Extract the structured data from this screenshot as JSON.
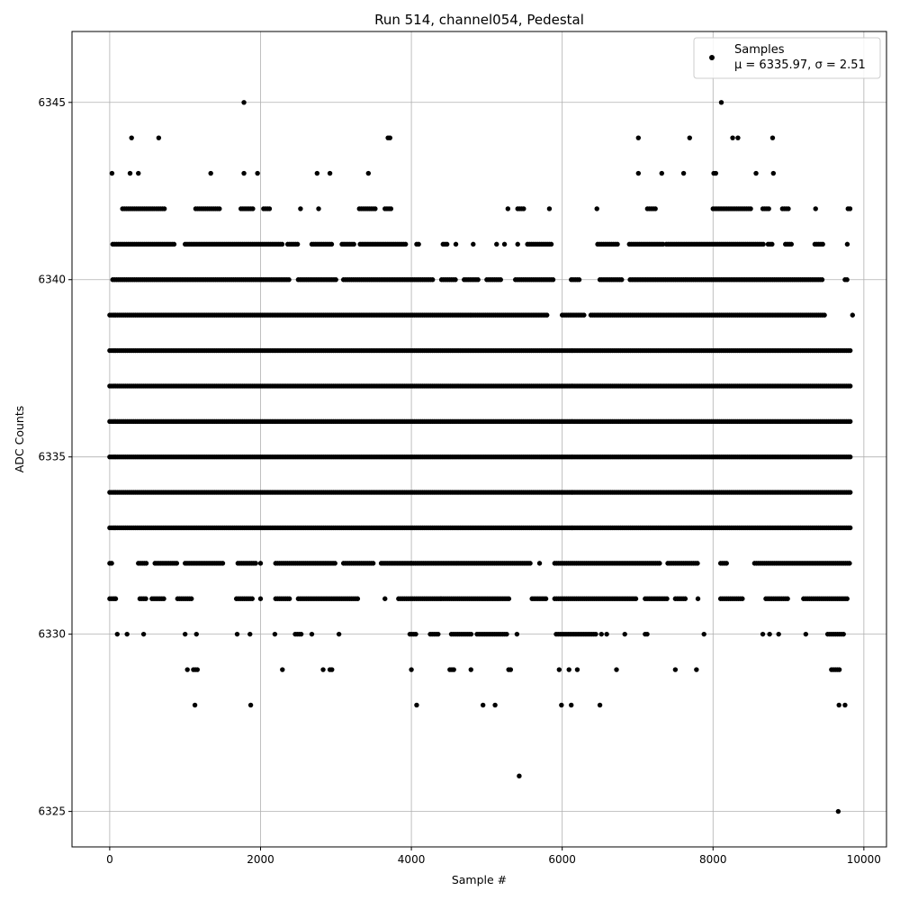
{
  "chart_data": {
    "type": "scatter",
    "title": "Run 514, channel054, Pedestal",
    "xlabel": "Sample #",
    "ylabel": "ADC Counts",
    "xlim": [
      -500,
      10300
    ],
    "ylim": [
      6324,
      6347
    ],
    "xticks": [
      0,
      2000,
      4000,
      6000,
      8000,
      10000
    ],
    "yticks": [
      6325,
      6330,
      6335,
      6340,
      6345
    ],
    "grid": true,
    "legend": {
      "placement": "top-right",
      "label": "Samples",
      "stats": "μ = 6335.97, σ = 2.51"
    },
    "series": [
      {
        "name": "Samples",
        "color": "#000000",
        "band_ranges": [
          {
            "y": 6345,
            "segments": [
              [
                1780,
                1780
              ],
              [
                8110,
                8110
              ]
            ]
          },
          {
            "y": 6344,
            "segments": [
              [
                290,
                290
              ],
              [
                650,
                650
              ],
              [
                3690,
                3720
              ],
              [
                7010,
                7010
              ],
              [
                7690,
                7690
              ],
              [
                8260,
                8260
              ],
              [
                8330,
                8330
              ],
              [
                8780,
                8800
              ]
            ]
          },
          {
            "y": 6343,
            "segments": [
              [
                30,
                30
              ],
              [
                270,
                270
              ],
              [
                380,
                380
              ],
              [
                1340,
                1340
              ],
              [
                1780,
                1780
              ],
              [
                1960,
                1960
              ],
              [
                2750,
                2750
              ],
              [
                2920,
                2920
              ],
              [
                3430,
                3430
              ],
              [
                7010,
                7010
              ],
              [
                7320,
                7320
              ],
              [
                7610,
                7610
              ],
              [
                8010,
                8050
              ],
              [
                8570,
                8570
              ],
              [
                8800,
                8800
              ]
            ]
          },
          {
            "y": 6342,
            "segments": [
              [
                170,
                600
              ],
              [
                620,
                740
              ],
              [
                1140,
                1460
              ],
              [
                1740,
                1920
              ],
              [
                2040,
                2130
              ],
              [
                2530,
                2530
              ],
              [
                2770,
                2770
              ],
              [
                3310,
                3540
              ],
              [
                3650,
                3750
              ],
              [
                5280,
                5280
              ],
              [
                5410,
                5500
              ],
              [
                5830,
                5830
              ],
              [
                6460,
                6460
              ],
              [
                7130,
                7240
              ],
              [
                8000,
                8500
              ],
              [
                8660,
                8750
              ],
              [
                8920,
                9020
              ],
              [
                9360,
                9360
              ],
              [
                9790,
                9820
              ]
            ]
          },
          {
            "y": 6341,
            "segments": [
              [
                40,
                880
              ],
              [
                1000,
                2300
              ],
              [
                2360,
                2500
              ],
              [
                2680,
                2960
              ],
              [
                3080,
                3240
              ],
              [
                3320,
                3940
              ],
              [
                4070,
                4100
              ],
              [
                4420,
                4490
              ],
              [
                4590,
                4590
              ],
              [
                4820,
                4820
              ],
              [
                5130,
                5130
              ],
              [
                5230,
                5240
              ],
              [
                5410,
                5410
              ],
              [
                5540,
                5880
              ],
              [
                6470,
                6750
              ],
              [
                6890,
                7350
              ],
              [
                7380,
                8680
              ],
              [
                8730,
                8800
              ],
              [
                8960,
                9050
              ],
              [
                9350,
                9470
              ],
              [
                9780,
                9780
              ]
            ]
          },
          {
            "y": 6340,
            "segments": [
              [
                40,
                2400
              ],
              [
                2500,
                3000
              ],
              [
                3100,
                4300
              ],
              [
                4400,
                4600
              ],
              [
                4700,
                4900
              ],
              [
                5000,
                5200
              ],
              [
                5380,
                5880
              ],
              [
                6120,
                6240
              ],
              [
                6500,
                6800
              ],
              [
                6900,
                9450
              ],
              [
                9750,
                9800
              ]
            ]
          },
          {
            "y": 6339,
            "segments": [
              [
                0,
                4800
              ],
              [
                4800,
                5800
              ],
              [
                6000,
                6300
              ],
              [
                6380,
                9500
              ],
              [
                9850,
                9850
              ]
            ]
          },
          {
            "y": 6338,
            "segments": [
              [
                0,
                9820
              ]
            ]
          },
          {
            "y": 6337,
            "segments": [
              [
                0,
                9820
              ]
            ]
          },
          {
            "y": 6336,
            "segments": [
              [
                0,
                9820
              ]
            ]
          },
          {
            "y": 6335,
            "segments": [
              [
                0,
                9820
              ]
            ]
          },
          {
            "y": 6334,
            "segments": [
              [
                0,
                9820
              ]
            ]
          },
          {
            "y": 6333,
            "segments": [
              [
                0,
                9820
              ]
            ]
          },
          {
            "y": 6332,
            "segments": [
              [
                0,
                50
              ],
              [
                380,
                500
              ],
              [
                600,
                900
              ],
              [
                1000,
                1500
              ],
              [
                1700,
                1950
              ],
              [
                2000,
                2000
              ],
              [
                2200,
                3000
              ],
              [
                3100,
                3500
              ],
              [
                3600,
                4000
              ],
              [
                4000,
                5600
              ],
              [
                5700,
                5700
              ],
              [
                5900,
                7300
              ],
              [
                7400,
                7800
              ],
              [
                8100,
                8200
              ],
              [
                8550,
                9820
              ]
            ]
          },
          {
            "y": 6331,
            "segments": [
              [
                0,
                80
              ],
              [
                400,
                480
              ],
              [
                560,
                740
              ],
              [
                900,
                1100
              ],
              [
                1680,
                1900
              ],
              [
                2000,
                2000
              ],
              [
                2200,
                2400
              ],
              [
                2500,
                3300
              ],
              [
                3650,
                3650
              ],
              [
                3830,
                4400
              ],
              [
                4400,
                5300
              ],
              [
                5600,
                5800
              ],
              [
                5900,
                7000
              ],
              [
                7100,
                7400
              ],
              [
                7500,
                7650
              ],
              [
                7800,
                7800
              ],
              [
                8100,
                8400
              ],
              [
                8700,
                9000
              ],
              [
                9200,
                9800
              ]
            ]
          },
          {
            "y": 6330,
            "segments": [
              [
                100,
                100
              ],
              [
                230,
                230
              ],
              [
                450,
                450
              ],
              [
                1000,
                1000
              ],
              [
                1150,
                1150
              ],
              [
                1690,
                1690
              ],
              [
                1860,
                1860
              ],
              [
                2190,
                2190
              ],
              [
                2460,
                2560
              ],
              [
                2680,
                2680
              ],
              [
                3040,
                3040
              ],
              [
                3980,
                4060
              ],
              [
                4250,
                4380
              ],
              [
                4530,
                4800
              ],
              [
                4870,
                5290
              ],
              [
                5400,
                5400
              ],
              [
                5920,
                6450
              ],
              [
                6520,
                6520
              ],
              [
                6590,
                6590
              ],
              [
                6830,
                6830
              ],
              [
                7100,
                7150
              ],
              [
                7880,
                7880
              ],
              [
                8660,
                8660
              ],
              [
                8750,
                8750
              ],
              [
                8870,
                8870
              ],
              [
                9230,
                9230
              ],
              [
                9520,
                9750
              ]
            ]
          },
          {
            "y": 6329,
            "segments": [
              [
                1030,
                1030
              ],
              [
                1110,
                1180
              ],
              [
                2290,
                2290
              ],
              [
                2830,
                2830
              ],
              [
                2920,
                2970
              ],
              [
                4000,
                4000
              ],
              [
                4510,
                4570
              ],
              [
                4790,
                4790
              ],
              [
                5290,
                5330
              ],
              [
                5960,
                5960
              ],
              [
                6090,
                6090
              ],
              [
                6200,
                6200
              ],
              [
                6720,
                6720
              ],
              [
                7500,
                7500
              ],
              [
                7780,
                7780
              ],
              [
                9570,
                9680
              ]
            ]
          },
          {
            "y": 6328,
            "segments": [
              [
                1130,
                1130
              ],
              [
                1870,
                1870
              ],
              [
                4060,
                4080
              ],
              [
                4950,
                4950
              ],
              [
                5110,
                5110
              ],
              [
                5980,
                6000
              ],
              [
                6110,
                6130
              ],
              [
                6500,
                6500
              ],
              [
                9670,
                9670
              ],
              [
                9750,
                9750
              ]
            ]
          },
          {
            "y": 6326,
            "segments": [
              [
                5430,
                5430
              ]
            ]
          },
          {
            "y": 6325,
            "segments": [
              [
                9660,
                9660
              ]
            ]
          }
        ]
      }
    ]
  }
}
